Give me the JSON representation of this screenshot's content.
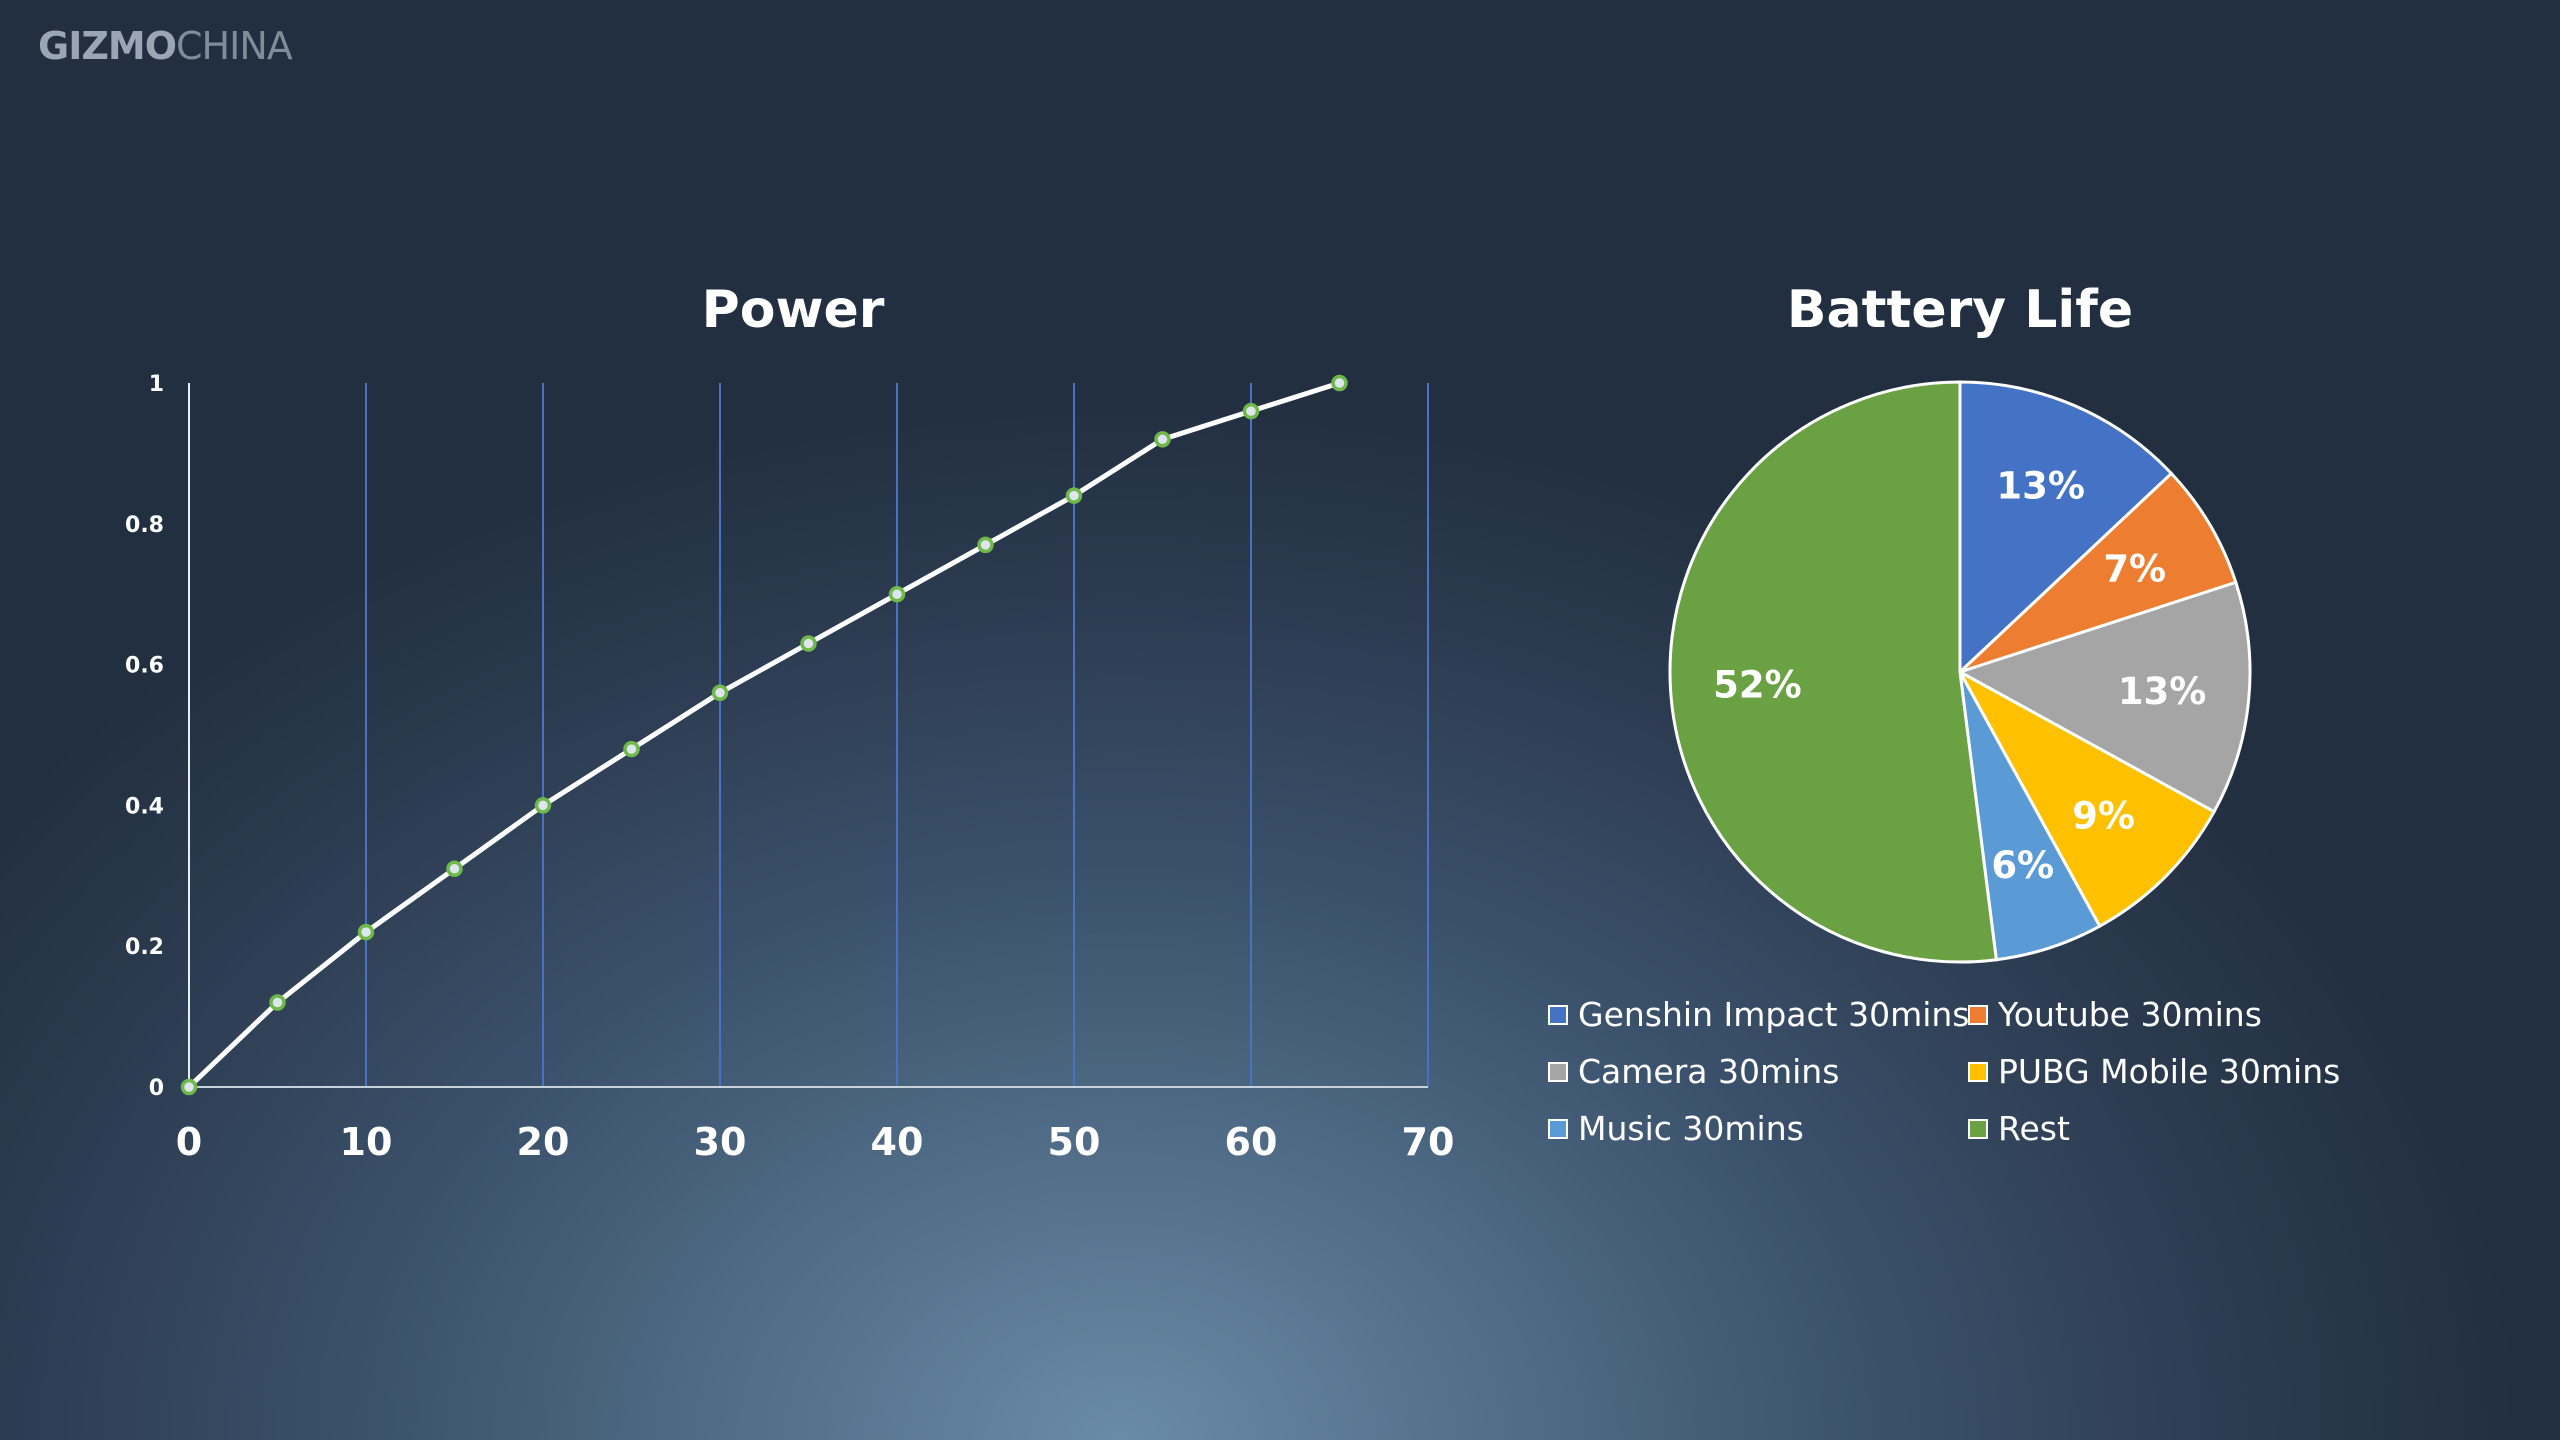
{
  "watermark": {
    "part1": "GIZMO",
    "part2": "CHINA"
  },
  "chart_data": [
    {
      "type": "line",
      "title": "Power",
      "xlabel": "",
      "ylabel": "",
      "x": [
        0,
        5,
        10,
        15,
        20,
        25,
        30,
        35,
        40,
        45,
        50,
        55,
        60,
        65
      ],
      "series": [
        {
          "values": [
            0,
            0.12,
            0.22,
            0.31,
            0.4,
            0.48,
            0.56,
            0.63,
            0.7,
            0.77,
            0.84,
            0.92,
            0.96,
            1.0
          ]
        }
      ],
      "xlim": [
        0,
        70
      ],
      "ylim": [
        0,
        1
      ],
      "xticks": [
        "0",
        "10",
        "20",
        "30",
        "40",
        "50",
        "60",
        "70"
      ],
      "yticks": [
        "0",
        "0.2",
        "0.4",
        "0.6",
        "0.8",
        "1"
      ],
      "grid": "vertical",
      "colors": {
        "line": "#ffffff",
        "marker": "#6fb84a",
        "grid_major": "#4a72c4",
        "grid_minor": "#e8eef5"
      }
    },
    {
      "type": "pie",
      "title": "Battery Life",
      "slices": [
        {
          "label": "Genshin Impact 30mins",
          "value": 13,
          "text": "13%",
          "color": "#4472c4"
        },
        {
          "label": "Youtube 30mins",
          "value": 7,
          "text": "7%",
          "color": "#ed7d31"
        },
        {
          "label": "Camera 30mins",
          "value": 13,
          "text": "13%",
          "color": "#a5a5a5"
        },
        {
          "label": "PUBG Mobile 30mins",
          "value": 9,
          "text": "9%",
          "color": "#ffc000"
        },
        {
          "label": "Music 30mins",
          "value": 6,
          "text": "6%",
          "color": "#5b9bd5"
        },
        {
          "label": "Rest",
          "value": 52,
          "text": "52%",
          "color": "#6aa142"
        }
      ],
      "legend_placement": "bottom"
    }
  ]
}
